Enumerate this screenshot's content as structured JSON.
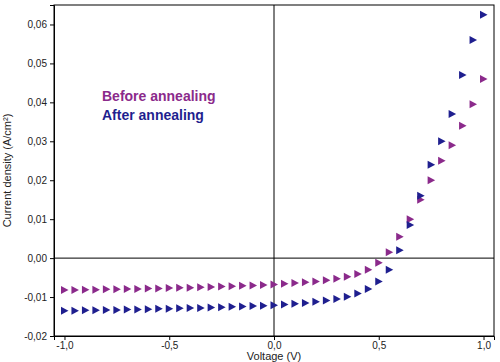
{
  "chart_data": {
    "type": "scatter",
    "x_label": "Voltage (V)",
    "y_label": "Current density (A/cm²)",
    "legend": "upper left",
    "marker": "triangle-right",
    "xlim": [
      -1.05,
      1.05
    ],
    "ylim": [
      -0.02,
      0.065
    ],
    "xticks": [
      {
        "value": -1,
        "label": "-1,0"
      },
      {
        "value": -0.5,
        "label": "-0,5"
      },
      {
        "value": 0,
        "label": "0,0"
      },
      {
        "value": 0.5,
        "label": "0,5"
      },
      {
        "value": 1,
        "label": "1,0"
      }
    ],
    "yticks": [
      {
        "value": -0.02,
        "label": "-0,02"
      },
      {
        "value": -0.01,
        "label": "-0,01"
      },
      {
        "value": 0,
        "label": "0,00"
      },
      {
        "value": 0.01,
        "label": "0,01"
      },
      {
        "value": 0.02,
        "label": "0,02"
      },
      {
        "value": 0.03,
        "label": "0,03"
      },
      {
        "value": 0.04,
        "label": "0,04"
      },
      {
        "value": 0.05,
        "label": "0,05"
      },
      {
        "value": 0.06,
        "label": "0,06"
      }
    ],
    "x": [
      -1.0,
      -0.95,
      -0.9,
      -0.85,
      -0.8,
      -0.75,
      -0.7,
      -0.65,
      -0.6,
      -0.55,
      -0.5,
      -0.45,
      -0.4,
      -0.35,
      -0.3,
      -0.25,
      -0.2,
      -0.15,
      -0.1,
      -0.05,
      0.0,
      0.05,
      0.1,
      0.15,
      0.2,
      0.25,
      0.3,
      0.35,
      0.4,
      0.45,
      0.5,
      0.55,
      0.6,
      0.65,
      0.7,
      0.75,
      0.8,
      0.85,
      0.9,
      0.95,
      1.0
    ],
    "series": [
      {
        "name": "Before annealing",
        "color": "#8b2a8b",
        "values": [
          -0.0082,
          -0.0082,
          -0.0081,
          -0.0081,
          -0.008,
          -0.008,
          -0.0079,
          -0.0079,
          -0.0078,
          -0.0078,
          -0.0077,
          -0.0076,
          -0.0076,
          -0.0075,
          -0.0074,
          -0.0073,
          -0.0072,
          -0.0071,
          -0.007,
          -0.0069,
          -0.0068,
          -0.0066,
          -0.0064,
          -0.0062,
          -0.006,
          -0.0057,
          -0.0053,
          -0.0048,
          -0.0041,
          -0.003,
          -0.0012,
          0.0015,
          0.0055,
          0.01,
          0.015,
          0.02,
          0.025,
          0.029,
          0.034,
          0.0395,
          0.046
        ]
      },
      {
        "name": "After annealing",
        "color": "#1f1f8f",
        "values": [
          -0.0135,
          -0.0135,
          -0.0134,
          -0.0134,
          -0.0133,
          -0.0133,
          -0.0132,
          -0.0132,
          -0.0131,
          -0.013,
          -0.013,
          -0.0129,
          -0.0128,
          -0.0128,
          -0.0127,
          -0.0126,
          -0.0125,
          -0.0124,
          -0.0123,
          -0.0122,
          -0.0121,
          -0.0119,
          -0.0117,
          -0.0115,
          -0.0112,
          -0.0109,
          -0.0105,
          -0.0099,
          -0.0091,
          -0.0079,
          -0.006,
          -0.003,
          0.002,
          0.0085,
          0.016,
          0.024,
          0.03,
          0.037,
          0.047,
          0.056,
          0.0625
        ]
      }
    ]
  }
}
